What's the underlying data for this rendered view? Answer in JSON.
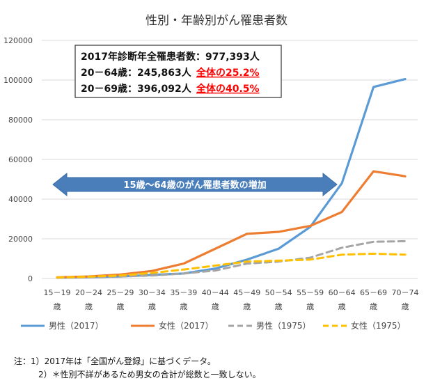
{
  "chart_data": {
    "type": "line",
    "title": "性別・年齢別がん罹患者数",
    "categories": [
      "15－19\n歳",
      "20－24\n歳",
      "25－29\n歳",
      "30－34\n歳",
      "35－39\n歳",
      "40－44\n歳",
      "45－49\n歳",
      "50－54\n歳",
      "55－59\n歳",
      "60－64\n歳",
      "65－69\n歳",
      "70－74\n歳"
    ],
    "y_ticks": [
      "0",
      "20000",
      "40000",
      "60000",
      "80000",
      "100000",
      "120000"
    ],
    "ylim": [
      0,
      120000
    ],
    "grid": true,
    "legend_position": "bottom",
    "series": [
      {
        "name": "男性（2017）",
        "color": "#5b9bd5",
        "dash": false,
        "values": [
          400,
          700,
          1000,
          1800,
          2500,
          5000,
          9500,
          15000,
          26000,
          48000,
          96500,
          100500
        ]
      },
      {
        "name": "女性（2017）",
        "color": "#ed7d31",
        "dash": false,
        "values": [
          600,
          1000,
          2000,
          3800,
          7500,
          15000,
          22500,
          23500,
          26500,
          33500,
          54000,
          51500
        ]
      },
      {
        "name": "男性（1975）",
        "color": "#a5a5a5",
        "dash": true,
        "values": [
          300,
          600,
          1000,
          1500,
          2500,
          4000,
          7500,
          8500,
          10500,
          15500,
          18500,
          18800
        ]
      },
      {
        "name": "女性（1975）",
        "color": "#ffc000",
        "dash": true,
        "values": [
          500,
          900,
          1500,
          2800,
          4500,
          6500,
          8500,
          9000,
          9500,
          12000,
          12500,
          12000
        ]
      }
    ],
    "annotation_box": [
      {
        "text": "2017年診断年全罹患者数：977,393人",
        "highlight": ""
      },
      {
        "text": "20－64歳：245,863人",
        "highlight": "全体の25.2%"
      },
      {
        "text": "20－69歳：396,092人",
        "highlight": "全体の40.5%"
      }
    ],
    "arrow_label": "15歳～64歳のがん罹患者数の増加"
  },
  "notes": [
    "注：1）2017年は「全国がん登録」に基づくデータ。",
    "2）＊性別不詳があるため男女の合計が総数と一致しない。"
  ],
  "colors": {
    "highlight": "#ff0000",
    "arrow": "#4a7ebb",
    "grid": "#d9d9d9"
  }
}
